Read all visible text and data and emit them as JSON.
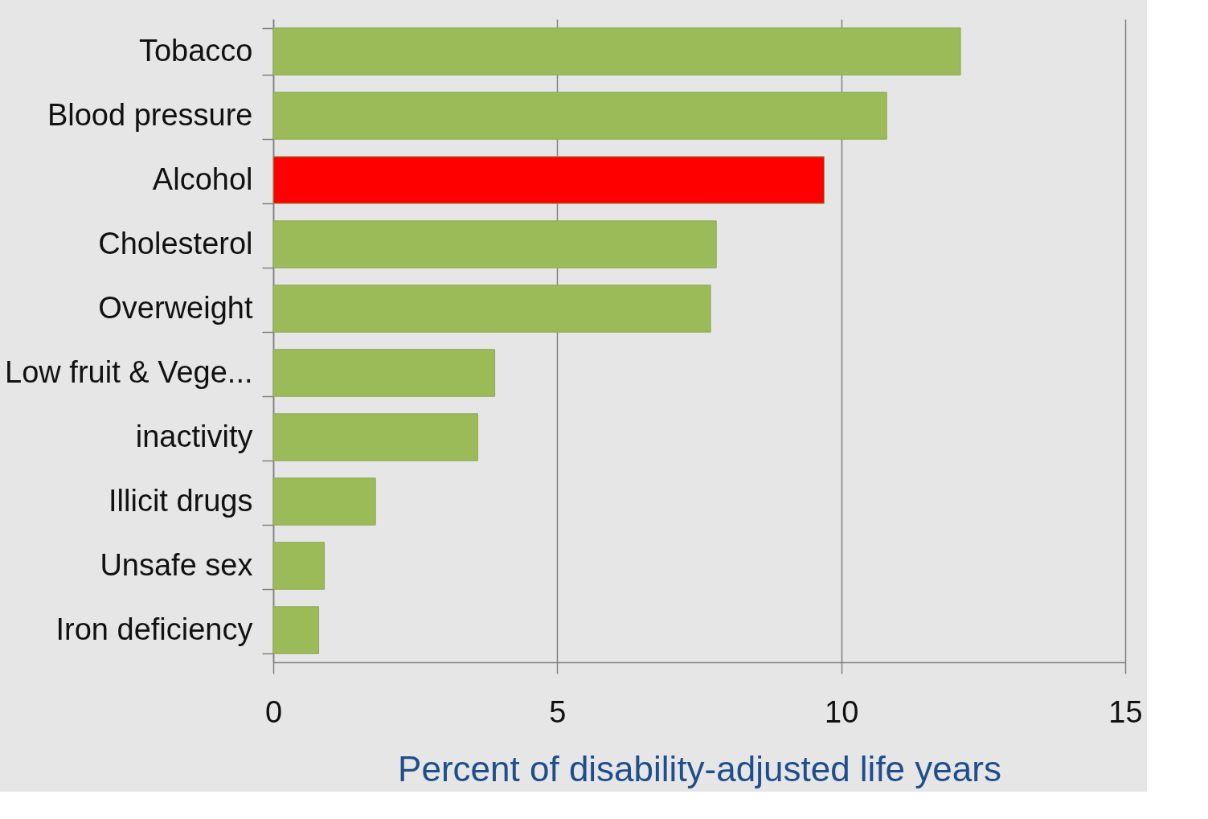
{
  "chart_data": {
    "type": "bar",
    "orientation": "horizontal",
    "xlabel": "Percent of disability-adjusted life years",
    "categories": [
      "Tobacco",
      "Blood pressure",
      "Alcohol",
      "Cholesterol",
      "Overweight",
      "Low fruit & Vege...",
      "inactivity",
      "Illicit drugs",
      "Unsafe sex",
      "Iron deficiency"
    ],
    "values": [
      12.1,
      10.8,
      9.7,
      7.8,
      7.7,
      3.9,
      3.6,
      1.8,
      0.9,
      0.8
    ],
    "colors": [
      "#9bbb59",
      "#9bbb59",
      "#ff0000",
      "#9bbb59",
      "#9bbb59",
      "#9bbb59",
      "#9bbb59",
      "#9bbb59",
      "#9bbb59",
      "#9bbb59"
    ],
    "xlim": [
      0,
      15
    ],
    "xticks": [
      0,
      5,
      10,
      15
    ],
    "grid": "x"
  }
}
